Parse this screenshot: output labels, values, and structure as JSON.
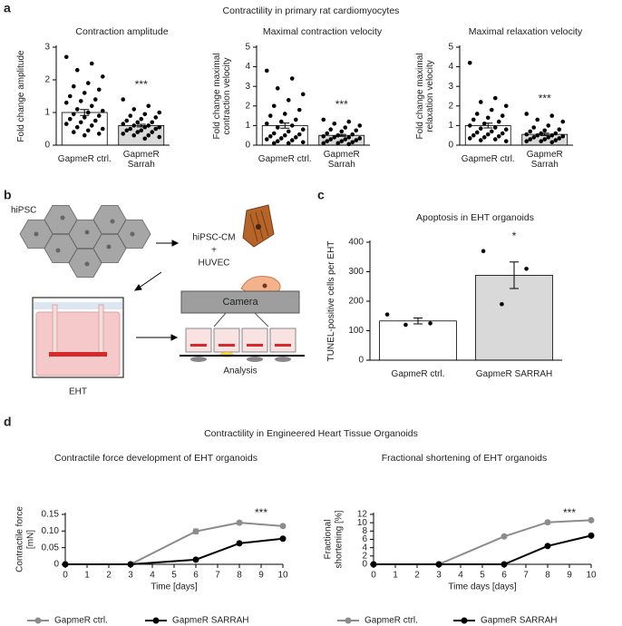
{
  "figure": {
    "panel_labels": [
      "a",
      "b",
      "c",
      "d"
    ],
    "heading_a": "Contractility in primary rat cardiomyocytes",
    "heading_d": "Contractility in Engineered Heart Tissue Organoids"
  },
  "diagram": {
    "hipsc": "hiPSC",
    "hipsc_cm": "hiPSC-CM",
    "plus": "+",
    "huvec": "HUVEC",
    "camera": "Camera",
    "eht": "EHT",
    "analysis": "Analysis"
  },
  "chart_data": [
    {
      "type": "bar",
      "title": "Contraction amplitude",
      "y_label": "Fold change amplitude",
      "categories": [
        "GapmeR ctrl.",
        "GapmeR Sarrah"
      ],
      "colors": [
        "#ffffff",
        "#d9d9d9"
      ],
      "values": [
        1.0,
        0.6
      ],
      "errors": [
        0.09,
        0.04
      ],
      "annotation": "***",
      "points": [
        [
          2.7,
          2.5,
          2.3,
          2.1,
          1.9,
          1.8,
          1.7,
          1.6,
          1.5,
          1.4,
          1.35,
          1.3,
          1.2,
          1.1,
          1.05,
          1.0,
          0.95,
          0.9,
          0.85,
          0.8,
          0.75,
          0.7,
          0.65,
          0.6,
          0.55,
          0.5,
          0.45,
          0.4,
          0.35,
          0.3
        ],
        [
          1.4,
          1.2,
          1.1,
          1.0,
          0.95,
          0.9,
          0.85,
          0.8,
          0.75,
          0.7,
          0.7,
          0.65,
          0.6,
          0.6,
          0.55,
          0.55,
          0.5,
          0.5,
          0.45,
          0.45,
          0.4,
          0.4,
          0.35,
          0.3,
          0.3,
          0.25,
          0.2
        ]
      ],
      "ylim": [
        0,
        3
      ],
      "yticks": [
        0,
        1,
        2,
        3
      ]
    },
    {
      "type": "bar",
      "title": "Maximal contraction velocity",
      "y_label": "Fold change maximal contraction velocity",
      "categories": [
        "GapmeR ctrl.",
        "GapmeR Sarrah"
      ],
      "colors": [
        "#ffffff",
        "#d9d9d9"
      ],
      "values": [
        1.0,
        0.5
      ],
      "errors": [
        0.13,
        0.05
      ],
      "annotation": "***",
      "points": [
        [
          3.8,
          3.4,
          2.9,
          2.6,
          2.3,
          2.0,
          1.8,
          1.6,
          1.5,
          1.3,
          1.2,
          1.1,
          1.0,
          0.9,
          0.8,
          0.7,
          0.6,
          0.55,
          0.5,
          0.45,
          0.4,
          0.35,
          0.3,
          0.25,
          0.2,
          0.15,
          0.1,
          0.1
        ],
        [
          1.3,
          1.2,
          1.1,
          1.0,
          0.9,
          0.8,
          0.75,
          0.7,
          0.6,
          0.55,
          0.5,
          0.45,
          0.4,
          0.4,
          0.35,
          0.3,
          0.3,
          0.25,
          0.2,
          0.2,
          0.15,
          0.1,
          0.1,
          0.05
        ]
      ],
      "ylim": [
        0,
        5
      ],
      "yticks": [
        0,
        1,
        2,
        3,
        4,
        5
      ]
    },
    {
      "type": "bar",
      "title": "Maximal relaxation velocity",
      "y_label": "Fold change maximal relaxation velocity",
      "categories": [
        "GapmeR ctrl.",
        "GapmeR Sarrah"
      ],
      "colors": [
        "#ffffff",
        "#d9d9d9"
      ],
      "values": [
        1.0,
        0.55
      ],
      "errors": [
        0.12,
        0.06
      ],
      "annotation": "***",
      "points": [
        [
          4.2,
          2.4,
          2.2,
          2.0,
          1.8,
          1.6,
          1.5,
          1.4,
          1.3,
          1.2,
          1.1,
          1.0,
          0.9,
          0.85,
          0.8,
          0.7,
          0.65,
          0.6,
          0.55,
          0.5,
          0.45,
          0.4,
          0.35,
          0.3,
          0.25,
          0.2
        ],
        [
          1.6,
          1.5,
          1.3,
          1.2,
          1.0,
          0.9,
          0.8,
          0.75,
          0.7,
          0.6,
          0.6,
          0.55,
          0.5,
          0.5,
          0.45,
          0.4,
          0.4,
          0.35,
          0.3,
          0.3,
          0.25,
          0.2,
          0.2,
          0.15
        ]
      ],
      "ylim": [
        0,
        5
      ],
      "yticks": [
        0,
        1,
        2,
        3,
        4,
        5
      ]
    },
    {
      "type": "bar",
      "title": "Apoptosis in EHT organoids",
      "y_label": "TUNEL-positive cells per EHT",
      "categories": [
        "GapmeR ctrl.",
        "GapmeR SARRAH"
      ],
      "colors": [
        "#ffffff",
        "#d9d9d9"
      ],
      "values": [
        133,
        288
      ],
      "errors": [
        10,
        45
      ],
      "annotation": "*",
      "points": [
        [
          155,
          125,
          120
        ],
        [
          370,
          310,
          190
        ]
      ],
      "ylim": [
        0,
        400
      ],
      "yticks": [
        0,
        100,
        200,
        300,
        400
      ]
    },
    {
      "type": "line",
      "title": "Contractile force development of EHT organoids",
      "y_label": "Contractile force [mN]",
      "x_label": "Time [days]",
      "x": [
        0,
        3,
        6,
        8,
        10
      ],
      "annotation": "***",
      "series": [
        {
          "name": "GapmeR ctrl.",
          "color": "#8c8c8c",
          "values": [
            0,
            0,
            0.099,
            0.125,
            0.115
          ],
          "errors": [
            0,
            0,
            0.007,
            0.003,
            0.004
          ]
        },
        {
          "name": "GapmeR SARRAH",
          "color": "#000000",
          "values": [
            0,
            0,
            0.014,
            0.063,
            0.077
          ],
          "errors": [
            0,
            0,
            0.002,
            0.002,
            0.002
          ]
        }
      ],
      "xlim": [
        0,
        10
      ],
      "xticks": [
        0,
        1,
        2,
        3,
        4,
        5,
        6,
        7,
        8,
        9,
        10
      ],
      "ylim": [
        0,
        0.15
      ],
      "yticks": [
        0,
        0.05,
        {
          "value": 0.1,
          "label": "0.10"
        },
        0.15
      ]
    },
    {
      "type": "line",
      "title": "Fractional shortening of EHT organoids",
      "y_label": "Fractional shortening [%]",
      "x_label": "Time days [days]",
      "x": [
        0,
        3,
        6,
        8,
        10
      ],
      "annotation": "***",
      "series": [
        {
          "name": "GapmeR ctrl.",
          "color": "#8c8c8c",
          "values": [
            0,
            0,
            6.7,
            10.1,
            10.6
          ],
          "errors": [
            0,
            0,
            0.3,
            0.4,
            0.2
          ]
        },
        {
          "name": "GapmeR SARRAH",
          "color": "#000000",
          "values": [
            0,
            0,
            0,
            4.4,
            6.9
          ],
          "errors": [
            0,
            0,
            0,
            0.1,
            0.1
          ]
        }
      ],
      "xlim": [
        0,
        10
      ],
      "xticks": [
        0,
        1,
        2,
        3,
        4,
        5,
        6,
        7,
        8,
        9,
        10
      ],
      "ylim": [
        0,
        12
      ],
      "yticks": [
        0,
        2,
        4,
        6,
        8,
        10,
        12
      ]
    }
  ]
}
